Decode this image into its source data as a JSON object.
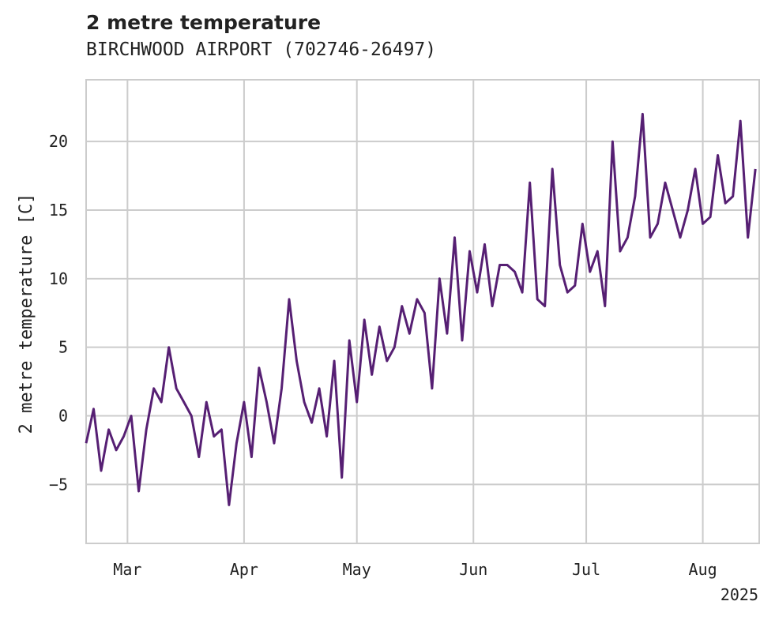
{
  "chart_data": {
    "type": "line",
    "title": "2 metre temperature",
    "subtitle": "BIRCHWOOD AIRPORT (702746-26497)",
    "xlabel": "",
    "ylabel": "2 metre temperature [C]",
    "x_range": [
      "2025-02-18",
      "2025-08-16"
    ],
    "ylim": [
      -9.3,
      24.5
    ],
    "y_ticks": [
      -5,
      0,
      5,
      10,
      15,
      20
    ],
    "x_ticks": [
      {
        "date": "2025-03-01",
        "label": "Mar"
      },
      {
        "date": "2025-04-01",
        "label": "Apr"
      },
      {
        "date": "2025-05-01",
        "label": "May"
      },
      {
        "date": "2025-06-01",
        "label": "Jun"
      },
      {
        "date": "2025-07-01",
        "label": "Jul"
      },
      {
        "date": "2025-08-01",
        "label": "Aug"
      }
    ],
    "x_offset_label": "2025",
    "grid": true,
    "line_color": "#561f73",
    "series": [
      {
        "x": [
          "2025-02-18",
          "2025-02-20",
          "2025-02-22",
          "2025-02-24",
          "2025-02-26",
          "2025-02-28",
          "2025-03-02",
          "2025-03-04",
          "2025-03-06",
          "2025-03-08",
          "2025-03-10",
          "2025-03-12",
          "2025-03-14",
          "2025-03-16",
          "2025-03-18",
          "2025-03-20",
          "2025-03-22",
          "2025-03-24",
          "2025-03-26",
          "2025-03-28",
          "2025-03-30",
          "2025-04-01",
          "2025-04-03",
          "2025-04-05",
          "2025-04-07",
          "2025-04-09",
          "2025-04-11",
          "2025-04-13",
          "2025-04-15",
          "2025-04-17",
          "2025-04-19",
          "2025-04-21",
          "2025-04-23",
          "2025-04-25",
          "2025-04-27",
          "2025-04-29",
          "2025-05-01",
          "2025-05-03",
          "2025-05-05",
          "2025-05-07",
          "2025-05-09",
          "2025-05-11",
          "2025-05-13",
          "2025-05-15",
          "2025-05-17",
          "2025-05-19",
          "2025-05-21",
          "2025-05-23",
          "2025-05-25",
          "2025-05-27",
          "2025-05-29",
          "2025-05-31",
          "2025-06-02",
          "2025-06-04",
          "2025-06-06",
          "2025-06-08",
          "2025-06-10",
          "2025-06-12",
          "2025-06-14",
          "2025-06-16",
          "2025-06-18",
          "2025-06-20",
          "2025-06-22",
          "2025-06-24",
          "2025-06-26",
          "2025-06-28",
          "2025-06-30",
          "2025-07-02",
          "2025-07-04",
          "2025-07-06",
          "2025-07-08",
          "2025-07-10",
          "2025-07-12",
          "2025-07-14",
          "2025-07-16",
          "2025-07-18",
          "2025-07-20",
          "2025-07-22",
          "2025-07-24",
          "2025-07-26",
          "2025-07-28",
          "2025-07-30",
          "2025-08-01",
          "2025-08-03",
          "2025-08-05",
          "2025-08-07",
          "2025-08-09",
          "2025-08-11",
          "2025-08-13",
          "2025-08-15"
        ],
        "y": [
          -2.0,
          0.5,
          -4.0,
          -1.0,
          -2.5,
          -1.5,
          0.0,
          -5.5,
          -1.0,
          2.0,
          1.0,
          5.0,
          2.0,
          1.0,
          0.0,
          -3.0,
          1.0,
          -1.5,
          -1.0,
          -6.5,
          -2.0,
          1.0,
          -3.0,
          3.5,
          1.0,
          -2.0,
          2.0,
          8.5,
          4.0,
          1.0,
          -0.5,
          2.0,
          -1.5,
          4.0,
          -4.5,
          5.5,
          1.0,
          7.0,
          3.0,
          6.5,
          4.0,
          5.0,
          8.0,
          6.0,
          8.5,
          7.5,
          2.0,
          10.0,
          6.0,
          13.0,
          5.5,
          12.0,
          9.0,
          12.5,
          8.0,
          11.0,
          11.0,
          10.5,
          9.0,
          17.0,
          8.5,
          8.0,
          18.0,
          11.0,
          9.0,
          9.5,
          14.0,
          10.5,
          12.0,
          8.0,
          20.0,
          12.0,
          13.0,
          16.0,
          22.0,
          13.0,
          14.0,
          17.0,
          15.0,
          13.0,
          15.0,
          18.0,
          14.0,
          14.5,
          19.0,
          15.5,
          16.0,
          21.5,
          13.0,
          18.0
        ]
      }
    ]
  }
}
